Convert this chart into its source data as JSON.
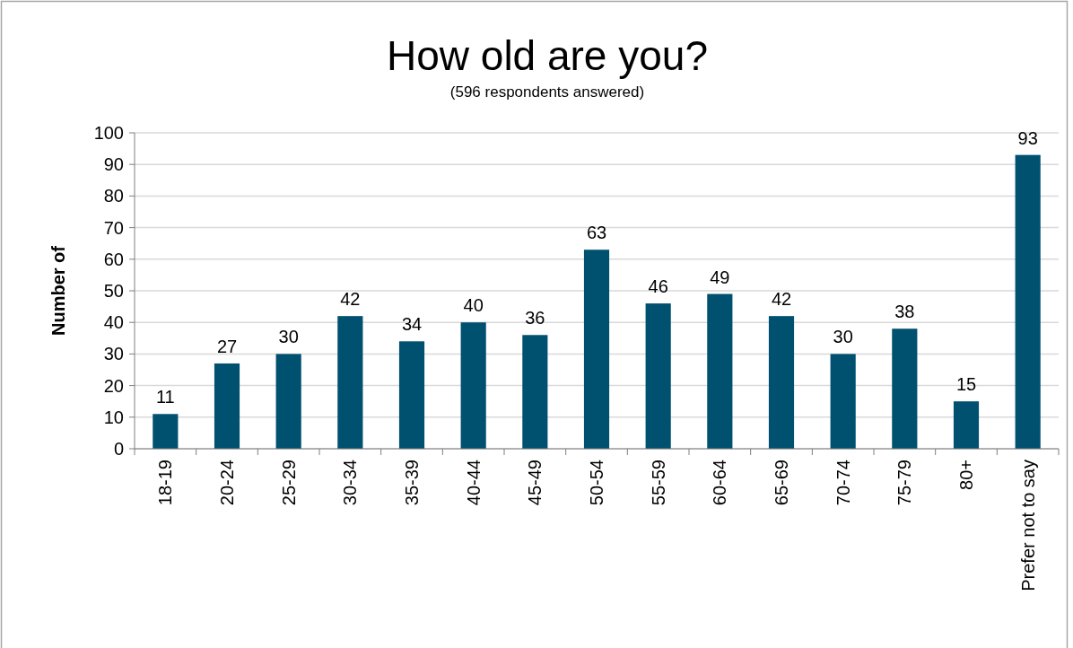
{
  "chart_data": {
    "type": "bar",
    "title": "How old are you?",
    "subtitle": "(596 respondents answered)",
    "ylabel": "Number of",
    "categories": [
      "18-19",
      "20-24",
      "25-29",
      "30-34",
      "35-39",
      "40-44",
      "45-49",
      "50-54",
      "55-59",
      "60-64",
      "65-69",
      "70-74",
      "75-79",
      "80+",
      "Prefer not to say"
    ],
    "values": [
      11,
      27,
      30,
      42,
      34,
      40,
      36,
      63,
      46,
      49,
      42,
      30,
      38,
      15,
      93
    ],
    "color": "#005070",
    "ylim": [
      0,
      100
    ],
    "yticks": [
      0,
      10,
      20,
      30,
      40,
      50,
      60,
      70,
      80,
      90,
      100
    ],
    "grid": "y",
    "data_labels": true
  }
}
